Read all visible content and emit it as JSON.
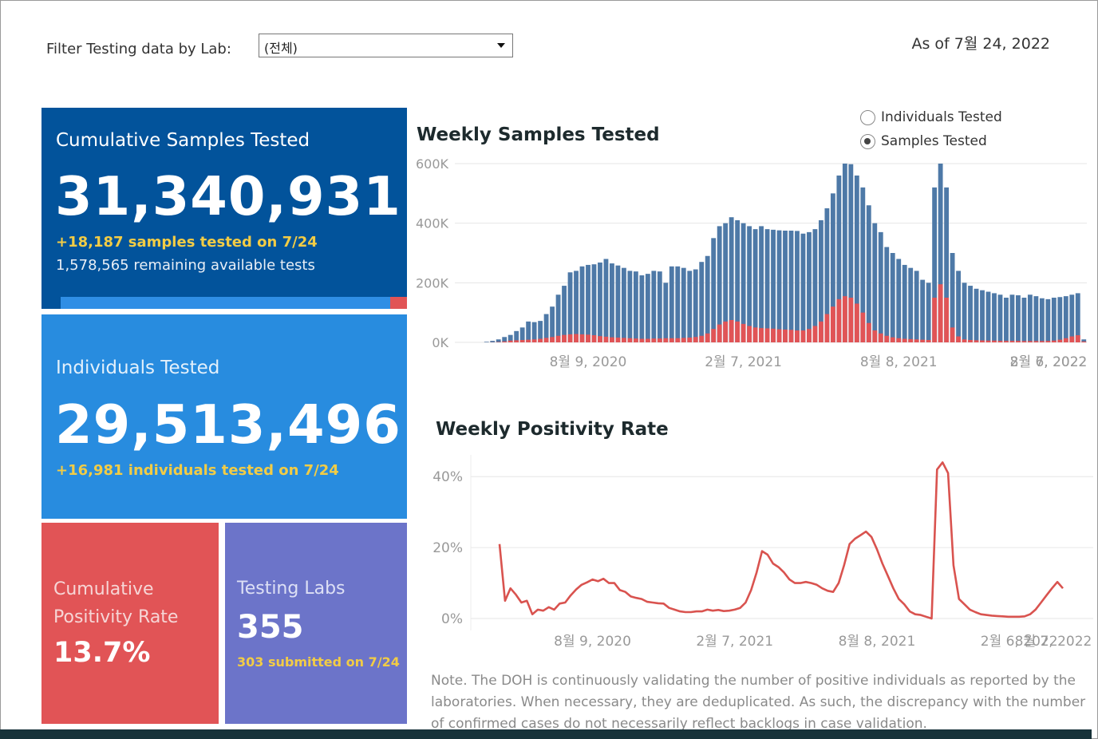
{
  "filter": {
    "label": "Filter Testing data by Lab:",
    "selected": "(전체)"
  },
  "as_of": "As of 7월 24, 2022",
  "tiles": {
    "samples": {
      "title": "Cumulative Samples Tested",
      "value": "31,340,931",
      "delta": "+18,187 samples tested on 7/24",
      "remaining": "1,578,565 remaining available tests",
      "used_fraction": 0.952
    },
    "individuals": {
      "title": "Individuals Tested",
      "value": "29,513,496",
      "delta": "+16,981  individuals  tested on 7/24"
    },
    "positivity": {
      "title_line1": "Cumulative",
      "title_line2": "Positivity Rate",
      "value": "13.7%"
    },
    "labs": {
      "title": "Testing Labs",
      "value": "355",
      "sub": "303 submitted on 7/24"
    }
  },
  "toggle": {
    "options": [
      "Individuals Tested",
      "Samples Tested"
    ],
    "selected": "Samples Tested"
  },
  "colors": {
    "samples_tile": "#02539b",
    "individuals_tile": "#288cdf",
    "positivity_tile": "#e15456",
    "labs_tile": "#6c74c9",
    "highlight_text": "#f2cc45",
    "bar_total": "#4e79a7",
    "bar_positive": "#e15456",
    "line": "#d9534f"
  },
  "chart_data": [
    {
      "type": "bar",
      "title": "Weekly Samples Tested",
      "ylim": [
        0,
        600000
      ],
      "yticks": [
        0,
        200000,
        400000,
        600000
      ],
      "ytick_labels": [
        "0K",
        "200K",
        "400K",
        "600K"
      ],
      "x_start": "2020-04-12",
      "x_interval_days": 7,
      "xtick_labels": [
        "8월 9, 2020",
        "2월 7, 2021",
        "8월 8, 2021",
        "2월 6, 2022",
        "8월 7, 2022"
      ],
      "xtick_index": [
        17,
        43,
        69,
        95,
        121
      ],
      "grid": true,
      "series": [
        {
          "name": "Samples Tested",
          "values": [
            2000,
            5000,
            10000,
            18000,
            25000,
            38000,
            50000,
            70000,
            68000,
            72000,
            95000,
            120000,
            160000,
            190000,
            235000,
            240000,
            255000,
            260000,
            262000,
            268000,
            280000,
            265000,
            258000,
            250000,
            240000,
            238000,
            225000,
            230000,
            240000,
            238000,
            200000,
            255000,
            255000,
            250000,
            240000,
            245000,
            270000,
            290000,
            350000,
            390000,
            400000,
            420000,
            410000,
            400000,
            390000,
            380000,
            390000,
            380000,
            378000,
            376000,
            375000,
            375000,
            374000,
            365000,
            370000,
            380000,
            410000,
            450000,
            500000,
            560000,
            600000,
            598000,
            560000,
            520000,
            460000,
            400000,
            370000,
            320000,
            300000,
            280000,
            260000,
            250000,
            240000,
            210000,
            200000,
            520000,
            600000,
            520000,
            300000,
            240000,
            200000,
            190000,
            180000,
            175000,
            170000,
            165000,
            160000,
            150000,
            160000,
            158000,
            150000,
            160000,
            155000,
            148000,
            145000,
            150000,
            152000,
            155000,
            160000,
            165000,
            10000
          ],
          "positive": [
            100,
            400,
            1200,
            3000,
            6000,
            7000,
            8000,
            9000,
            10000,
            12000,
            15000,
            18000,
            22000,
            25000,
            27000,
            28000,
            27000,
            26000,
            24000,
            21000,
            19000,
            17000,
            16000,
            15000,
            14000,
            13000,
            12000,
            12000,
            13000,
            13000,
            14000,
            14000,
            14000,
            15000,
            16000,
            18000,
            22000,
            30000,
            45000,
            60000,
            70000,
            75000,
            70000,
            62000,
            55000,
            50000,
            48000,
            47000,
            46000,
            44000,
            43000,
            42000,
            40000,
            40000,
            45000,
            55000,
            70000,
            95000,
            120000,
            145000,
            155000,
            150000,
            130000,
            100000,
            65000,
            40000,
            30000,
            22000,
            17000,
            14000,
            12000,
            11000,
            10000,
            9000,
            8000,
            150000,
            195000,
            150000,
            50000,
            20000,
            10000,
            8000,
            7000,
            6500,
            6000,
            6000,
            5000,
            5000,
            5000,
            5000,
            4500,
            4500,
            4500,
            4500,
            5000,
            6000,
            9000,
            14000,
            20000,
            24000,
            3000
          ]
        }
      ]
    },
    {
      "type": "line",
      "title": "Weekly Positivity Rate",
      "ylim": [
        0,
        0.45
      ],
      "yticks": [
        0,
        0.2,
        0.4
      ],
      "ytick_labels": [
        "0%",
        "20%",
        "40%"
      ],
      "x_start": "2020-04-12",
      "x_interval_days": 7,
      "xtick_labels": [
        "8월 9, 2020",
        "2월 7, 2021",
        "8월 8, 2021",
        "2월 6, 2022",
        "8월 7, 2022"
      ],
      "xtick_index": [
        17,
        43,
        69,
        95,
        121
      ],
      "grid": true,
      "series": [
        {
          "name": "Positivity Rate",
          "values": [
            0.21,
            0.05,
            0.085,
            0.067,
            0.045,
            0.05,
            0.012,
            0.025,
            0.022,
            0.032,
            0.025,
            0.042,
            0.045,
            0.065,
            0.082,
            0.095,
            0.102,
            0.11,
            0.105,
            0.112,
            0.1,
            0.1,
            0.08,
            0.075,
            0.062,
            0.058,
            0.055,
            0.047,
            0.045,
            0.043,
            0.042,
            0.03,
            0.025,
            0.02,
            0.018,
            0.018,
            0.02,
            0.02,
            0.025,
            0.022,
            0.024,
            0.021,
            0.022,
            0.025,
            0.03,
            0.045,
            0.08,
            0.13,
            0.19,
            0.18,
            0.155,
            0.145,
            0.13,
            0.11,
            0.1,
            0.1,
            0.103,
            0.1,
            0.095,
            0.085,
            0.078,
            0.075,
            0.1,
            0.15,
            0.21,
            0.225,
            0.235,
            0.245,
            0.23,
            0.195,
            0.155,
            0.12,
            0.085,
            0.055,
            0.04,
            0.02,
            0.012,
            0.01,
            0.005,
            0.0,
            0.42,
            0.44,
            0.41,
            0.15,
            0.055,
            0.04,
            0.025,
            0.018,
            0.012,
            0.01,
            0.008,
            0.007,
            0.006,
            0.005,
            0.005,
            0.005,
            0.006,
            0.012,
            0.025,
            0.045,
            0.065,
            0.085,
            0.103,
            0.085
          ]
        }
      ]
    }
  ],
  "note": "Note. The DOH is continuously validating the number of positive individuals as reported by the laboratories. When necessary, they are deduplicated. As such, the discrepancy with the number of confirmed cases do not necessarily reflect backlogs in case validation."
}
